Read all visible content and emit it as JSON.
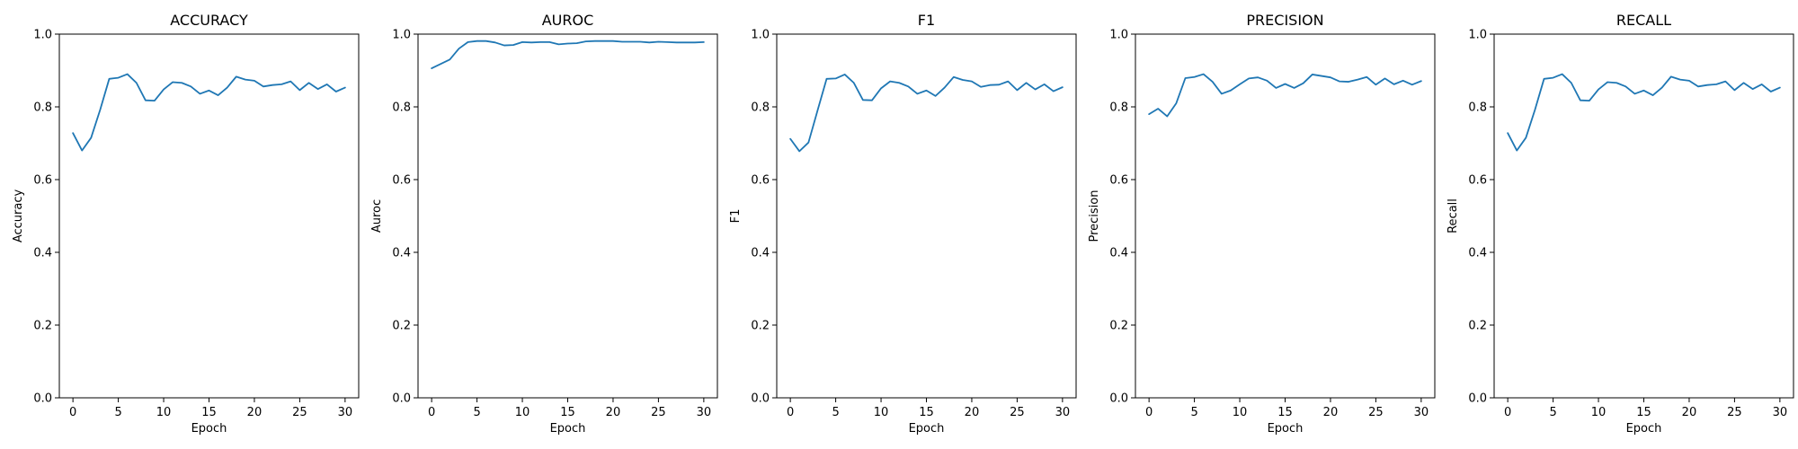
{
  "figure": {
    "line_color": "#1f77b4",
    "background": "#ffffff",
    "axis_color": "#000000"
  },
  "chart_data": [
    {
      "type": "line",
      "title": "ACCURACY",
      "xlabel": "Epoch",
      "ylabel": "Accuracy",
      "xlim": [
        -1.5,
        31.5
      ],
      "ylim": [
        0.0,
        1.0
      ],
      "xticks": [
        0,
        5,
        10,
        15,
        20,
        25,
        30
      ],
      "yticks": [
        0.0,
        0.2,
        0.4,
        0.6,
        0.8,
        1.0
      ],
      "xtick_labels": [
        "0",
        "5",
        "10",
        "15",
        "20",
        "25",
        "30"
      ],
      "ytick_labels": [
        "0.0",
        "0.2",
        "0.4",
        "0.6",
        "0.8",
        "1.0"
      ],
      "grid": false,
      "x": [
        0,
        1,
        2,
        3,
        4,
        5,
        6,
        7,
        8,
        9,
        10,
        11,
        12,
        13,
        14,
        15,
        16,
        17,
        18,
        19,
        20,
        21,
        22,
        23,
        24,
        25,
        26,
        27,
        28,
        29,
        30
      ],
      "series": [
        {
          "values": [
            0.728,
            0.68,
            0.715,
            0.792,
            0.877,
            0.88,
            0.89,
            0.866,
            0.818,
            0.817,
            0.848,
            0.868,
            0.866,
            0.856,
            0.836,
            0.845,
            0.832,
            0.853,
            0.883,
            0.875,
            0.872,
            0.856,
            0.86,
            0.862,
            0.87,
            0.846,
            0.866,
            0.849,
            0.862,
            0.842,
            0.853
          ]
        }
      ]
    },
    {
      "type": "line",
      "title": "AUROC",
      "xlabel": "Epoch",
      "ylabel": "Auroc",
      "xlim": [
        -1.5,
        31.5
      ],
      "ylim": [
        0.0,
        1.0
      ],
      "xticks": [
        0,
        5,
        10,
        15,
        20,
        25,
        30
      ],
      "yticks": [
        0.0,
        0.2,
        0.4,
        0.6,
        0.8,
        1.0
      ],
      "xtick_labels": [
        "0",
        "5",
        "10",
        "15",
        "20",
        "25",
        "30"
      ],
      "ytick_labels": [
        "0.0",
        "0.2",
        "0.4",
        "0.6",
        "0.8",
        "1.0"
      ],
      "grid": false,
      "x": [
        0,
        1,
        2,
        3,
        4,
        5,
        6,
        7,
        8,
        9,
        10,
        11,
        12,
        13,
        14,
        15,
        16,
        17,
        18,
        19,
        20,
        21,
        22,
        23,
        24,
        25,
        26,
        27,
        28,
        29,
        30
      ],
      "series": [
        {
          "values": [
            0.906,
            0.918,
            0.93,
            0.96,
            0.978,
            0.981,
            0.981,
            0.977,
            0.969,
            0.97,
            0.978,
            0.977,
            0.978,
            0.978,
            0.972,
            0.974,
            0.975,
            0.98,
            0.981,
            0.981,
            0.981,
            0.979,
            0.979,
            0.979,
            0.977,
            0.979,
            0.978,
            0.977,
            0.977,
            0.977,
            0.978
          ]
        }
      ]
    },
    {
      "type": "line",
      "title": "F1",
      "xlabel": "Epoch",
      "ylabel": "F1",
      "xlim": [
        -1.5,
        31.5
      ],
      "ylim": [
        0.0,
        1.0
      ],
      "xticks": [
        0,
        5,
        10,
        15,
        20,
        25,
        30
      ],
      "yticks": [
        0.0,
        0.2,
        0.4,
        0.6,
        0.8,
        1.0
      ],
      "xtick_labels": [
        "0",
        "5",
        "10",
        "15",
        "20",
        "25",
        "30"
      ],
      "ytick_labels": [
        "0.0",
        "0.2",
        "0.4",
        "0.6",
        "0.8",
        "1.0"
      ],
      "grid": false,
      "x": [
        0,
        1,
        2,
        3,
        4,
        5,
        6,
        7,
        8,
        9,
        10,
        11,
        12,
        13,
        14,
        15,
        16,
        17,
        18,
        19,
        20,
        21,
        22,
        23,
        24,
        25,
        26,
        27,
        28,
        29,
        30
      ],
      "series": [
        {
          "values": [
            0.712,
            0.678,
            0.702,
            0.79,
            0.877,
            0.878,
            0.889,
            0.866,
            0.819,
            0.818,
            0.851,
            0.87,
            0.866,
            0.856,
            0.836,
            0.845,
            0.83,
            0.853,
            0.882,
            0.874,
            0.87,
            0.855,
            0.86,
            0.861,
            0.87,
            0.846,
            0.866,
            0.848,
            0.862,
            0.843,
            0.854
          ]
        }
      ]
    },
    {
      "type": "line",
      "title": "PRECISION",
      "xlabel": "Epoch",
      "ylabel": "Precision",
      "xlim": [
        -1.5,
        31.5
      ],
      "ylim": [
        0.0,
        1.0
      ],
      "xticks": [
        0,
        5,
        10,
        15,
        20,
        25,
        30
      ],
      "yticks": [
        0.0,
        0.2,
        0.4,
        0.6,
        0.8,
        1.0
      ],
      "xtick_labels": [
        "0",
        "5",
        "10",
        "15",
        "20",
        "25",
        "30"
      ],
      "ytick_labels": [
        "0.0",
        "0.2",
        "0.4",
        "0.6",
        "0.8",
        "1.0"
      ],
      "grid": false,
      "x": [
        0,
        1,
        2,
        3,
        4,
        5,
        6,
        7,
        8,
        9,
        10,
        11,
        12,
        13,
        14,
        15,
        16,
        17,
        18,
        19,
        20,
        21,
        22,
        23,
        24,
        25,
        26,
        27,
        28,
        29,
        30
      ],
      "series": [
        {
          "values": [
            0.78,
            0.795,
            0.774,
            0.81,
            0.879,
            0.882,
            0.89,
            0.869,
            0.836,
            0.845,
            0.862,
            0.878,
            0.881,
            0.872,
            0.852,
            0.863,
            0.852,
            0.865,
            0.889,
            0.885,
            0.881,
            0.87,
            0.869,
            0.875,
            0.882,
            0.861,
            0.878,
            0.862,
            0.872,
            0.861,
            0.871
          ]
        }
      ]
    },
    {
      "type": "line",
      "title": "RECALL",
      "xlabel": "Epoch",
      "ylabel": "Recall",
      "xlim": [
        -1.5,
        31.5
      ],
      "ylim": [
        0.0,
        1.0
      ],
      "xticks": [
        0,
        5,
        10,
        15,
        20,
        25,
        30
      ],
      "yticks": [
        0.0,
        0.2,
        0.4,
        0.6,
        0.8,
        1.0
      ],
      "xtick_labels": [
        "0",
        "5",
        "10",
        "15",
        "20",
        "25",
        "30"
      ],
      "ytick_labels": [
        "0.0",
        "0.2",
        "0.4",
        "0.6",
        "0.8",
        "1.0"
      ],
      "grid": false,
      "x": [
        0,
        1,
        2,
        3,
        4,
        5,
        6,
        7,
        8,
        9,
        10,
        11,
        12,
        13,
        14,
        15,
        16,
        17,
        18,
        19,
        20,
        21,
        22,
        23,
        24,
        25,
        26,
        27,
        28,
        29,
        30
      ],
      "series": [
        {
          "values": [
            0.728,
            0.68,
            0.715,
            0.792,
            0.877,
            0.88,
            0.89,
            0.866,
            0.818,
            0.817,
            0.848,
            0.868,
            0.866,
            0.856,
            0.836,
            0.845,
            0.832,
            0.853,
            0.883,
            0.875,
            0.872,
            0.856,
            0.86,
            0.862,
            0.87,
            0.846,
            0.866,
            0.849,
            0.862,
            0.842,
            0.853
          ]
        }
      ]
    }
  ]
}
